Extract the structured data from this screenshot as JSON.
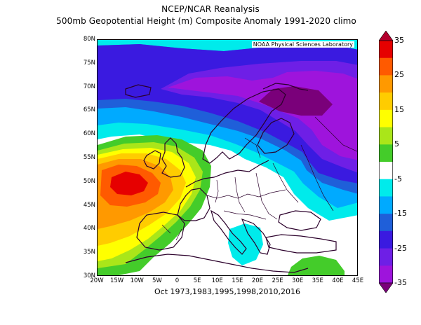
{
  "header": {
    "line1": "NCEP/NCAR Reanalysis",
    "line2": "500mb Geopotential Height (m) Composite Anomaly 1991-2020 climo"
  },
  "credit": "NOAA Physical Sciences Laboratory",
  "footer": "Oct 1973,1983,1995,1998,2010,2016",
  "axes": {
    "lat_labels": [
      "80N",
      "75N",
      "70N",
      "65N",
      "60N",
      "55N",
      "50N",
      "45N",
      "40N",
      "35N",
      "30N"
    ],
    "lon_labels": [
      "20W",
      "15W",
      "10W",
      "5W",
      "0",
      "5E",
      "10E",
      "15E",
      "20E",
      "25E",
      "30E",
      "35E",
      "40E",
      "45E"
    ]
  },
  "colorbar": {
    "labels": [
      "35",
      "25",
      "15",
      "5",
      "-5",
      "-15",
      "-25",
      "-35"
    ],
    "colors": [
      "#b3002d",
      "#e60000",
      "#ff5a00",
      "#ff9900",
      "#ffcc00",
      "#ffff00",
      "#aae619",
      "#44cc2a",
      "#ffffff",
      "#00ebeb",
      "#00aaff",
      "#1f5fd9",
      "#3a1ae0",
      "#6e1fe6",
      "#9e14dc",
      "#7a007a"
    ]
  },
  "map": {
    "region": "Europe / North Atlantic",
    "lat_range": [
      30,
      80
    ],
    "lon_range": [
      -20,
      45
    ],
    "variable": "500mb geopotential height composite anomaly (m)",
    "features": [
      {
        "name": "positive anomaly maximum",
        "sign": "positive",
        "center_lat": 50,
        "center_lon": -12,
        "approx_value": 30
      },
      {
        "name": "negative anomaly minimum",
        "sign": "negative",
        "center_lat": 67,
        "center_lon": 28,
        "approx_value": -30
      },
      {
        "name": "negative band high latitudes",
        "sign": "negative",
        "center_lat": 74,
        "center_lon": 0,
        "approx_value": -20
      },
      {
        "name": "weak positive anomaly",
        "sign": "positive",
        "center_lat": 32,
        "center_lon": 37,
        "approx_value": 7
      }
    ]
  }
}
